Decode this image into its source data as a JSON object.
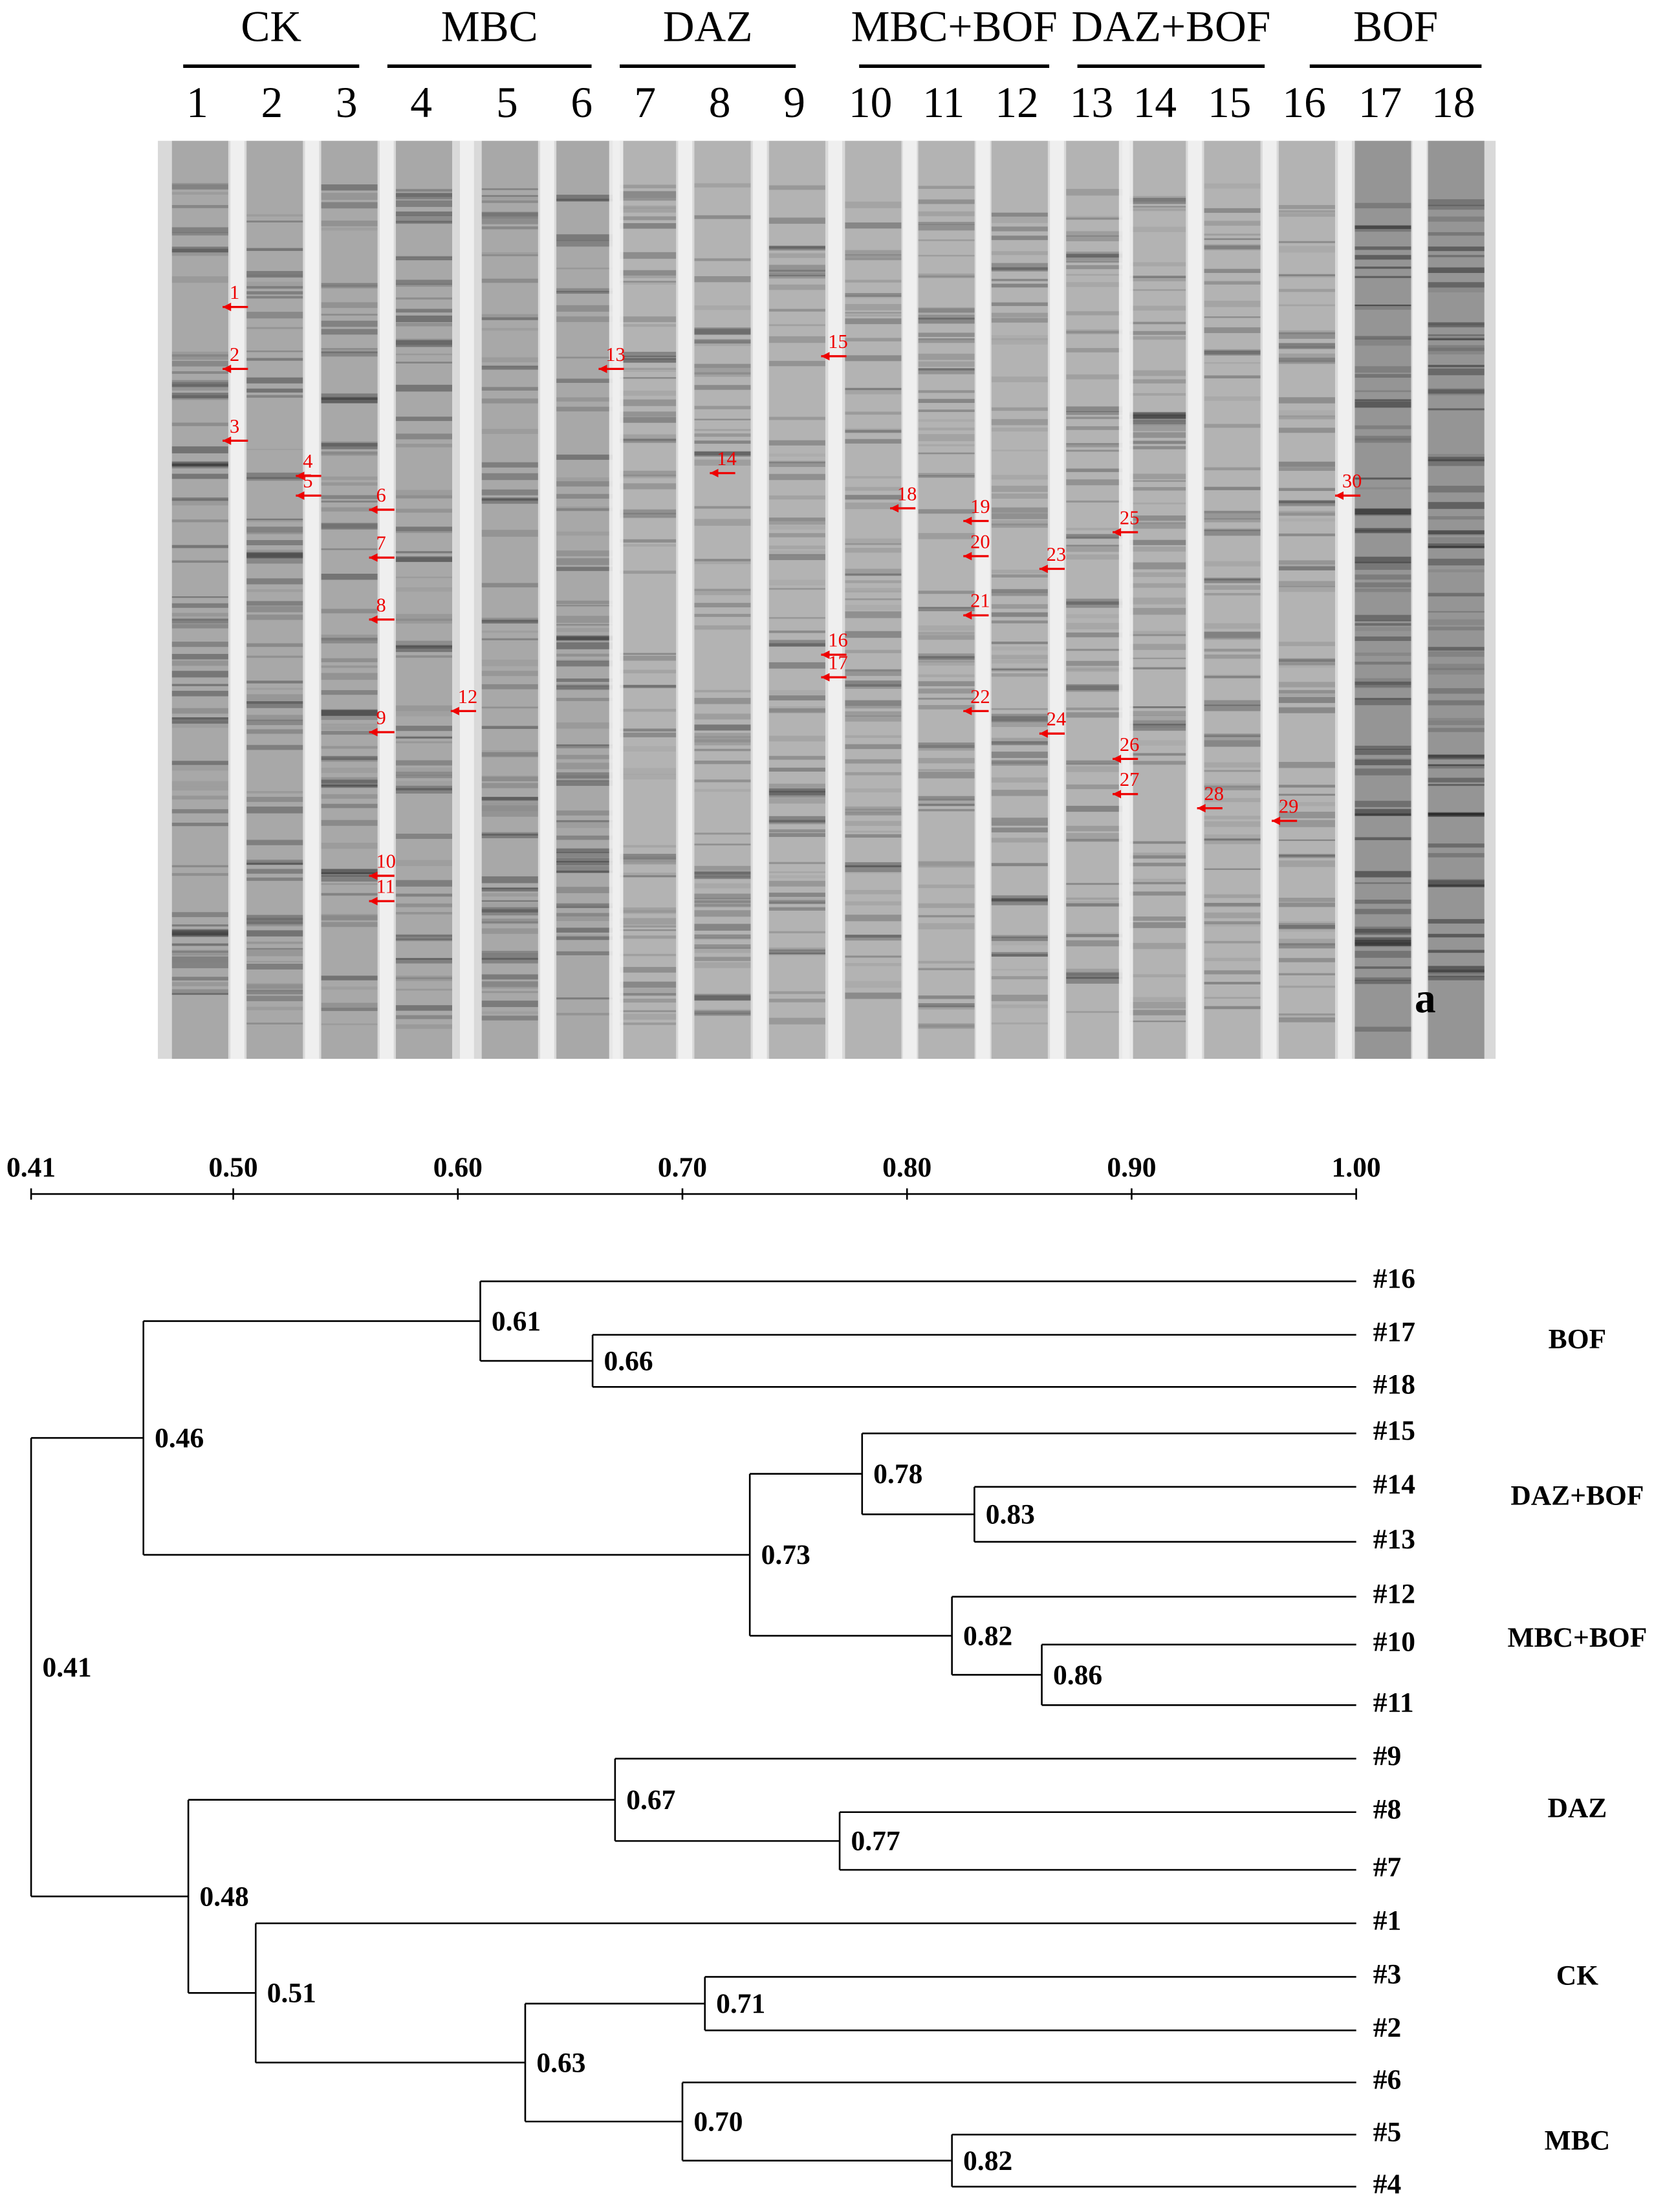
{
  "gel": {
    "groups": [
      "CK",
      "MBC",
      "DAZ",
      "MBC+BOF",
      "DAZ+BOF",
      "BOF"
    ],
    "lanes": [
      "1",
      "2",
      "3",
      "4",
      "5",
      "6",
      "7",
      "8",
      "9",
      "10",
      "11",
      "12",
      "13",
      "14",
      "15",
      "16",
      "17",
      "18"
    ],
    "band_markers": [
      "1",
      "2",
      "3",
      "4",
      "5",
      "6",
      "7",
      "8",
      "9",
      "10",
      "11",
      "12",
      "13",
      "14",
      "15",
      "16",
      "17",
      "18",
      "19",
      "20",
      "21",
      "22",
      "23",
      "24",
      "25",
      "26",
      "27",
      "28",
      "29",
      "30"
    ],
    "panel_label": "a"
  },
  "chart_data": {
    "type": "dendrogram",
    "xlim": [
      0.41,
      1.0
    ],
    "xticks": [
      0.41,
      {
        "value": 0.5,
        "label": "0.50"
      },
      {
        "value": 0.6,
        "label": "0.60"
      },
      {
        "value": 0.7,
        "label": "0.70"
      },
      {
        "value": 0.8,
        "label": "0.80"
      },
      {
        "value": 0.9,
        "label": "0.90"
      },
      {
        "value": 1.0,
        "label": "1.00"
      }
    ],
    "group_labels": [
      "BOF",
      "DAZ+BOF",
      "MBC+BOF",
      "DAZ",
      "CK",
      "MBC"
    ],
    "tree": {
      "value": 0.41,
      "children": [
        {
          "value": 0.46,
          "children": [
            {
              "value": 0.61,
              "children": [
                {
                  "label": "#16"
                },
                {
                  "value": 0.66,
                  "children": [
                    {
                      "label": "#17"
                    },
                    {
                      "label": "#18"
                    }
                  ]
                }
              ]
            },
            {
              "value": 0.73,
              "children": [
                {
                  "value": 0.78,
                  "children": [
                    {
                      "label": "#15"
                    },
                    {
                      "value": 0.83,
                      "children": [
                        {
                          "label": "#14"
                        },
                        {
                          "label": "#13"
                        }
                      ]
                    }
                  ]
                },
                {
                  "value": 0.82,
                  "children": [
                    {
                      "label": "#12"
                    },
                    {
                      "value": 0.86,
                      "children": [
                        {
                          "label": "#10"
                        },
                        {
                          "label": "#11"
                        }
                      ]
                    }
                  ]
                }
              ]
            }
          ]
        },
        {
          "value": 0.48,
          "children": [
            {
              "value": 0.67,
              "children": [
                {
                  "label": "#9"
                },
                {
                  "value": 0.77,
                  "children": [
                    {
                      "label": "#8"
                    },
                    {
                      "label": "#7"
                    }
                  ]
                }
              ]
            },
            {
              "value": 0.51,
              "children": [
                {
                  "label": "#1"
                },
                {
                  "value": 0.63,
                  "children": [
                    {
                      "value": 0.71,
                      "children": [
                        {
                          "label": "#3"
                        },
                        {
                          "label": "#2"
                        }
                      ]
                    },
                    {
                      "value": 0.7,
                      "label": "0.70",
                      "children": [
                        {
                          "label": "#6"
                        },
                        {
                          "value": 0.82,
                          "children": [
                            {
                              "label": "#5"
                            },
                            {
                              "label": "#4"
                            }
                          ]
                        }
                      ]
                    }
                  ]
                }
              ]
            }
          ]
        }
      ]
    }
  }
}
